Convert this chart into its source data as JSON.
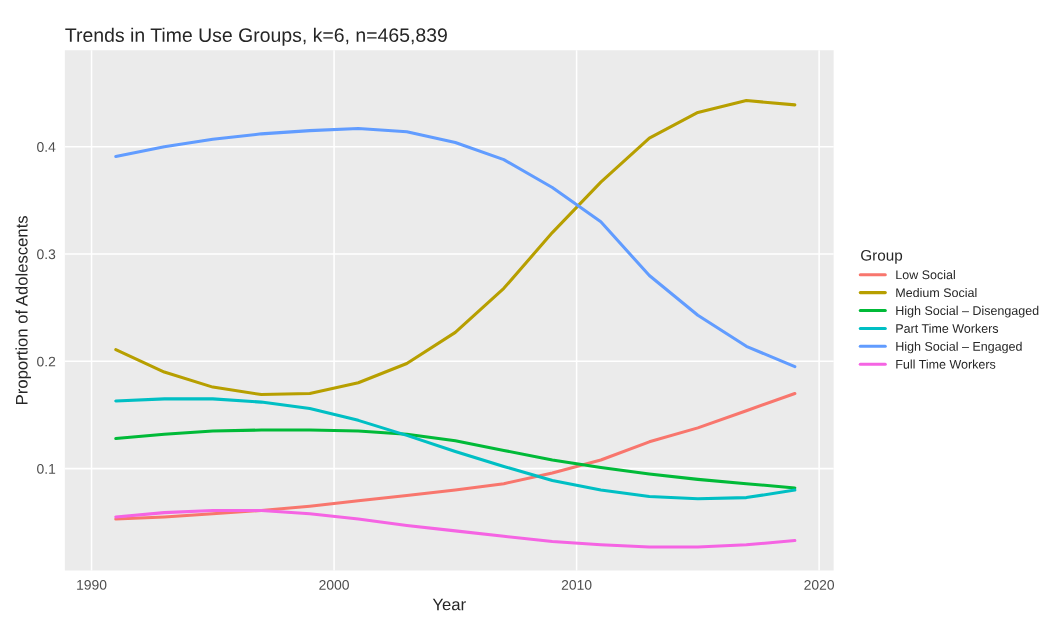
{
  "chart_data": {
    "type": "line",
    "title": "Trends in Time Use Groups, k=6, n=465,839",
    "xlabel": "Year",
    "ylabel": "Proportion of Adolescents",
    "legend_title": "Group",
    "x": [
      1991,
      1993,
      1995,
      1997,
      1999,
      2001,
      2003,
      2005,
      2007,
      2009,
      2011,
      2013,
      2015,
      2017,
      2019
    ],
    "series": [
      {
        "name": "Low Social",
        "color": "#f8766d",
        "values": [
          0.053,
          0.055,
          0.058,
          0.061,
          0.065,
          0.07,
          0.075,
          0.08,
          0.086,
          0.096,
          0.108,
          0.125,
          0.138,
          0.154,
          0.17
        ]
      },
      {
        "name": "Medium Social",
        "color": "#b79f00",
        "values": [
          0.211,
          0.19,
          0.176,
          0.169,
          0.17,
          0.18,
          0.198,
          0.227,
          0.268,
          0.32,
          0.367,
          0.408,
          0.432,
          0.443,
          0.439
        ]
      },
      {
        "name": "High Social – Disengaged",
        "color": "#00ba38",
        "values": [
          0.128,
          0.132,
          0.135,
          0.136,
          0.136,
          0.135,
          0.132,
          0.126,
          0.117,
          0.108,
          0.101,
          0.095,
          0.09,
          0.086,
          0.082
        ]
      },
      {
        "name": "Part Time Workers",
        "color": "#00bfc4",
        "values": [
          0.163,
          0.165,
          0.165,
          0.162,
          0.156,
          0.145,
          0.131,
          0.116,
          0.102,
          0.089,
          0.08,
          0.074,
          0.072,
          0.073,
          0.08
        ]
      },
      {
        "name": "High Social – Engaged",
        "color": "#619cff",
        "values": [
          0.391,
          0.4,
          0.407,
          0.412,
          0.415,
          0.417,
          0.414,
          0.404,
          0.388,
          0.362,
          0.33,
          0.28,
          0.243,
          0.214,
          0.195
        ]
      },
      {
        "name": "Full Time Workers",
        "color": "#f564e3",
        "values": [
          0.055,
          0.059,
          0.061,
          0.061,
          0.058,
          0.053,
          0.047,
          0.042,
          0.037,
          0.032,
          0.029,
          0.027,
          0.027,
          0.029,
          0.033
        ]
      }
    ],
    "xlim": [
      1988.9,
      2020.6
    ],
    "xticks": [
      1990,
      2000,
      2010,
      2020
    ],
    "ylim": [
      0.005,
      0.49
    ],
    "yticks": [
      0.1,
      0.2,
      0.3,
      0.4
    ],
    "grid": true,
    "legend": "right",
    "line_style": "solid"
  }
}
